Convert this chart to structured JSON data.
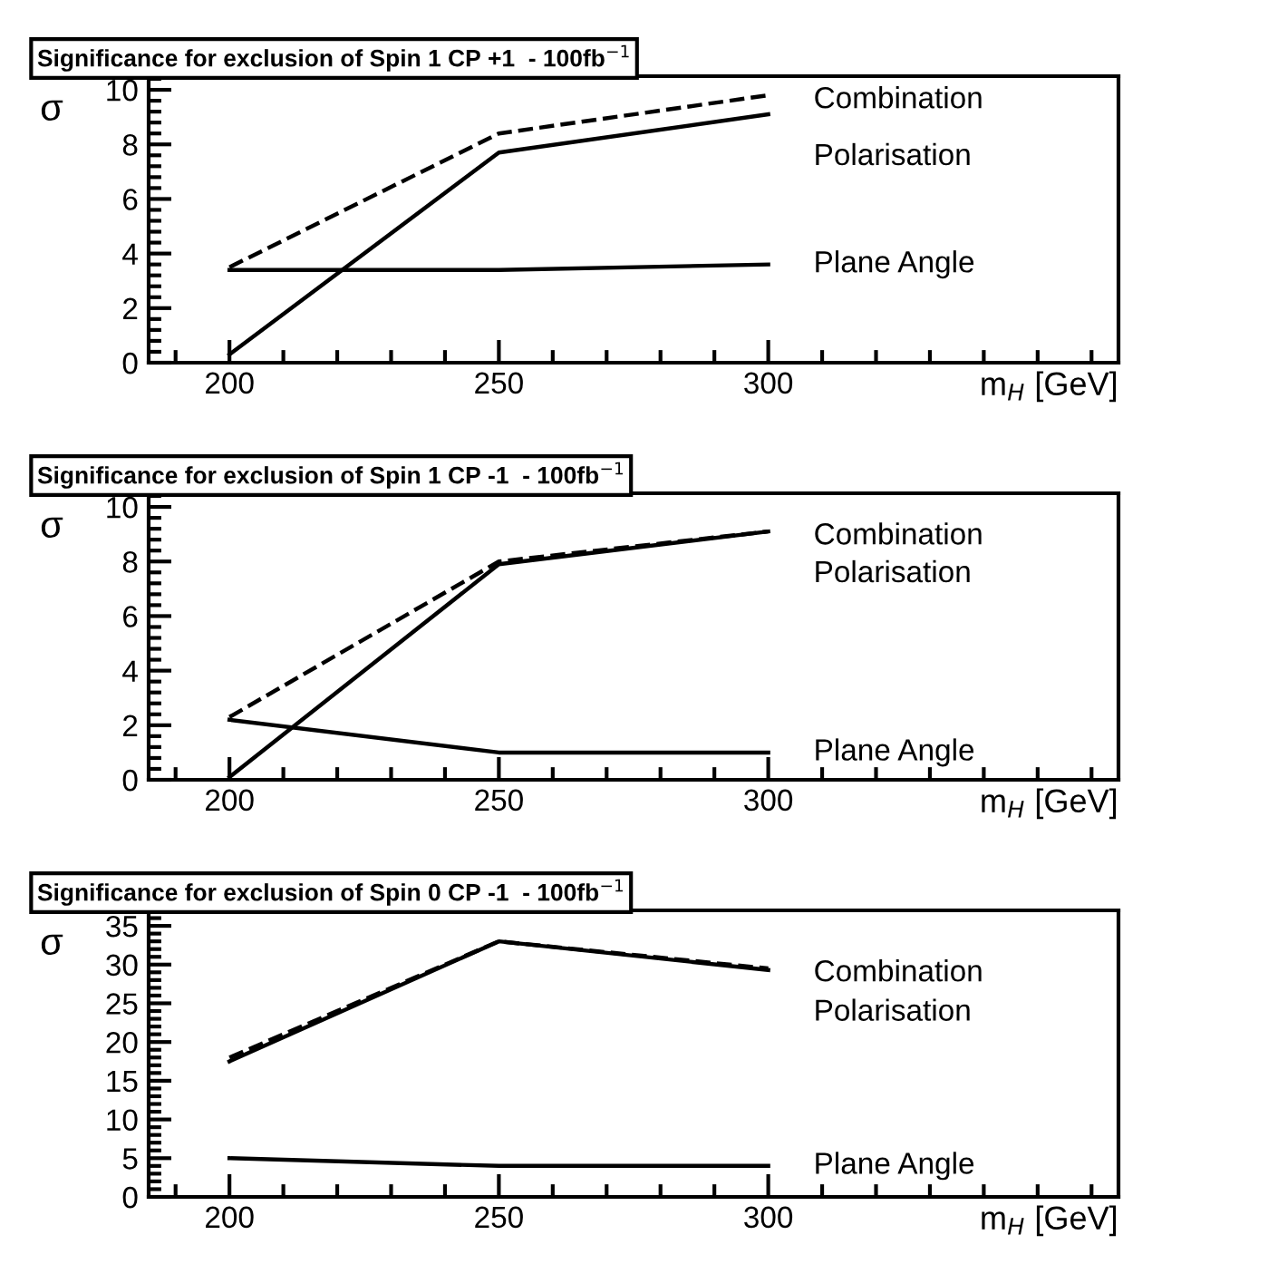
{
  "chart_data": [
    {
      "type": "line",
      "title": "Significance for exclusion of Spin 1 CP +1  - 100fb$^{−1}$",
      "xlabel": "m$_{H}$ [GeV]",
      "ylabel": "σ",
      "x": [
        200,
        250,
        300
      ],
      "xlim": [
        185,
        365
      ],
      "xticks": [
        200,
        250,
        300
      ],
      "ylim": [
        0,
        10.5
      ],
      "yticks": [
        0,
        2,
        4,
        6,
        8,
        10
      ],
      "grid": false,
      "legend": false,
      "series": [
        {
          "name": "Combination",
          "color": "#000000",
          "line_style": "dashed",
          "values": [
            3.5,
            8.4,
            9.8
          ]
        },
        {
          "name": "Polarisation",
          "color": "#000000",
          "line_style": "solid",
          "values": [
            0.3,
            7.7,
            9.1
          ]
        },
        {
          "name": "Plane Angle",
          "color": "#000000",
          "line_style": "solid",
          "values": [
            3.4,
            3.4,
            3.6
          ]
        }
      ]
    },
    {
      "type": "line",
      "title": "Significance for exclusion of Spin 1 CP -1  - 100fb$^{−1}$",
      "xlabel": "m$_{H}$ [GeV]",
      "ylabel": "σ",
      "x": [
        200,
        250,
        300
      ],
      "xlim": [
        185,
        365
      ],
      "xticks": [
        200,
        250,
        300
      ],
      "ylim": [
        0,
        10.5
      ],
      "yticks": [
        0,
        2,
        4,
        6,
        8,
        10
      ],
      "grid": false,
      "legend": false,
      "series": [
        {
          "name": "Combination",
          "color": "#000000",
          "line_style": "dashed",
          "values": [
            2.3,
            8.0,
            9.1
          ]
        },
        {
          "name": "Polarisation",
          "color": "#000000",
          "line_style": "solid",
          "values": [
            0.1,
            7.9,
            9.1
          ]
        },
        {
          "name": "Plane Angle",
          "color": "#000000",
          "line_style": "solid",
          "values": [
            2.2,
            1.0,
            1.0
          ]
        }
      ]
    },
    {
      "type": "line",
      "title": "Significance for exclusion of Spin 0 CP -1  - 100fb$^{−1}$",
      "xlabel": "m$_{H}$ [GeV]",
      "ylabel": "σ",
      "x": [
        200,
        250,
        300
      ],
      "xlim": [
        185,
        365
      ],
      "xticks": [
        200,
        250,
        300
      ],
      "ylim": [
        0,
        37
      ],
      "yticks": [
        0,
        5,
        10,
        15,
        20,
        25,
        30,
        35
      ],
      "grid": false,
      "legend": false,
      "series": [
        {
          "name": "Combination",
          "color": "#000000",
          "line_style": "dashed",
          "values": [
            18,
            33,
            29.5
          ]
        },
        {
          "name": "Polarisation",
          "color": "#000000",
          "line_style": "solid",
          "values": [
            17.5,
            33,
            29.3
          ]
        },
        {
          "name": "Plane Angle",
          "color": "#000000",
          "line_style": "solid",
          "values": [
            5,
            4,
            4
          ]
        }
      ]
    }
  ]
}
